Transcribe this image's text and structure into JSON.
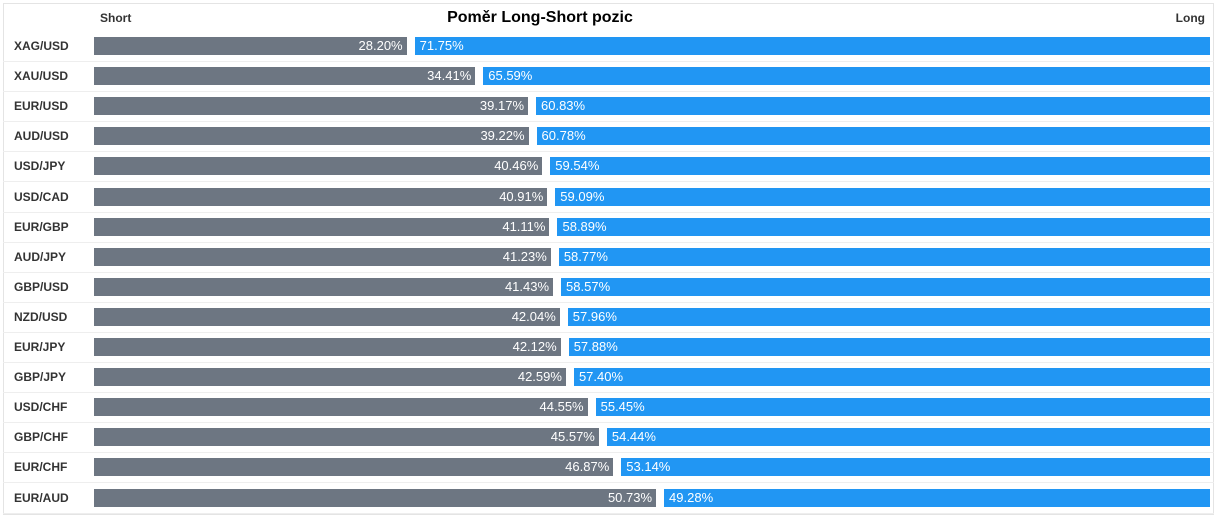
{
  "chart_data": {
    "type": "bar",
    "stacked": true,
    "orientation": "horizontal",
    "title": "Poměr Long-Short pozic",
    "short_label": "Short",
    "long_label": "Long",
    "colors": {
      "short": "#6d7682",
      "long": "#2196f3"
    },
    "categories": [
      "XAG/USD",
      "XAU/USD",
      "EUR/USD",
      "AUD/USD",
      "USD/JPY",
      "USD/CAD",
      "EUR/GBP",
      "AUD/JPY",
      "GBP/USD",
      "NZD/USD",
      "EUR/JPY",
      "GBP/JPY",
      "USD/CHF",
      "GBP/CHF",
      "EUR/CHF",
      "EUR/AUD"
    ],
    "series": [
      {
        "name": "Short",
        "values": [
          28.2,
          34.41,
          39.17,
          39.22,
          40.46,
          40.91,
          41.11,
          41.23,
          41.43,
          42.04,
          42.12,
          42.59,
          44.55,
          45.57,
          46.87,
          50.73
        ],
        "labels": [
          "28.20%",
          "34.41%",
          "39.17%",
          "39.22%",
          "40.46%",
          "40.91%",
          "41.11%",
          "41.23%",
          "41.43%",
          "42.04%",
          "42.12%",
          "42.59%",
          "44.55%",
          "45.57%",
          "46.87%",
          "50.73%"
        ]
      },
      {
        "name": "Long",
        "values": [
          71.75,
          65.59,
          60.83,
          60.78,
          59.54,
          59.09,
          58.89,
          58.77,
          58.57,
          57.96,
          57.88,
          57.4,
          55.45,
          54.44,
          53.14,
          49.28
        ],
        "labels": [
          "71.75%",
          "65.59%",
          "60.83%",
          "60.78%",
          "59.54%",
          "59.09%",
          "58.89%",
          "58.77%",
          "58.57%",
          "57.96%",
          "57.88%",
          "57.40%",
          "55.45%",
          "54.44%",
          "53.14%",
          "49.28%"
        ]
      }
    ]
  }
}
